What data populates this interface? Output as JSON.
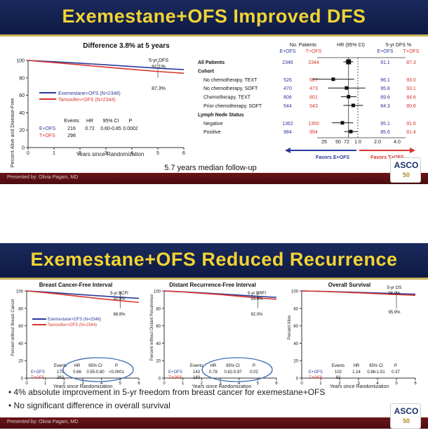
{
  "slide1": {
    "title": "Exemestane+OFS Improved DFS",
    "presenter": "Presented by: Olivia Pagani, MD",
    "logo": {
      "name": "ASCO",
      "anniv": "50"
    },
    "km": {
      "heading": "Difference 3.8% at 5 years",
      "ylabel": "Percent Alive and Disease-Free",
      "xlabel": "Years since Randomization",
      "annotation_label": "5-yr DFS",
      "annotation_top": "91.1%",
      "annotation_bottom": "87.3%",
      "legend": [
        "Exemestane+OFS (N=2346)",
        "Tamoxifen+OFS (N=2344)"
      ],
      "table_header": [
        "Events",
        "HR",
        "95% CI",
        "P"
      ],
      "row_e": {
        "label": "E+OFS",
        "events": "216",
        "hr": "0.72",
        "ci": "0.60-0.85",
        "p": "0.0002"
      },
      "row_t": {
        "label": "T+OFS",
        "events": "298"
      },
      "footer": "5.7 years median follow-up"
    },
    "forest": {
      "col_patients": "No. Patients",
      "col_hr": "HR (95% CI)",
      "col_dfs": "5-yr DFS %",
      "arm_e": "E+OFS",
      "arm_t": "T+OFS",
      "x_ticks": [
        "25",
        "50",
        "72",
        "1.0",
        "2.0",
        "4.0"
      ],
      "favors_e": "Favors E+OFS",
      "favors_t": "Favors T+OFS"
    }
  },
  "slide2": {
    "title": "Exemestane+OFS Reduced Recurrence",
    "presenter": "Presented by: Olivia Pagani, MD",
    "logo": {
      "name": "ASCO",
      "anniv": "50"
    },
    "xlabel": "Years since Randomization",
    "legend": [
      "Exemestane+OFS (N=2346)",
      "Tamoxifen+OFS (N=2344)"
    ],
    "table_header": [
      "Events",
      "HR",
      "95% CI",
      "P"
    ],
    "bullets": [
      "• 4% absolute improvement in 5-yr freedom from breast cancer for exemestane+OFS",
      "• No significant difference in overall survival"
    ]
  },
  "chart_data": [
    {
      "type": "line",
      "title": "Difference 3.8% at 5 years",
      "xlabel": "Years since Randomization",
      "ylabel": "Percent Alive and Disease-Free",
      "xlim": [
        0,
        6
      ],
      "ylim": [
        0,
        100
      ],
      "x_ticks": [
        0,
        1,
        2,
        3,
        4,
        5,
        6
      ],
      "y_ticks": [
        0,
        20,
        40,
        60,
        80,
        100
      ],
      "x": [
        0,
        1,
        2,
        3,
        4,
        5,
        6
      ],
      "series": [
        {
          "name": "Exemestane+OFS (N=2346)",
          "color": "#2b3a9b",
          "values": [
            100,
            98.5,
            96.8,
            95,
            93,
            91.1,
            89.5
          ]
        },
        {
          "name": "Tamoxifen+OFS (N=2344)",
          "color": "#d8342c",
          "values": [
            100,
            97.5,
            95,
            92.3,
            89.8,
            87.3,
            85.3
          ]
        }
      ]
    },
    {
      "type": "forest",
      "rows": [
        {
          "label": "All Patients",
          "bold": true,
          "n_e": "2346",
          "n_t": "2344",
          "hr": 0.72,
          "lo": 0.6,
          "hi": 0.85,
          "dfs_e": "91.1",
          "dfs_t": "87.3"
        },
        {
          "label": "Cohort",
          "bold": true,
          "header": true
        },
        {
          "label": "No chemotherapy, TEXT",
          "n_e": "526",
          "n_t": "527",
          "hr": 0.42,
          "lo": 0.2,
          "hi": 0.88,
          "dfs_e": "96.1",
          "dfs_t": "93.0"
        },
        {
          "label": "No chemotherapy, SOFT",
          "n_e": "470",
          "n_t": "473",
          "hr": 0.67,
          "lo": 0.35,
          "hi": 1.3,
          "dfs_e": "95.8",
          "dfs_t": "93.1"
        },
        {
          "label": "Chemotherapy, TEXT",
          "n_e": "806",
          "n_t": "801",
          "hr": 0.72,
          "lo": 0.55,
          "hi": 0.95,
          "dfs_e": "89.6",
          "dfs_t": "84.6"
        },
        {
          "label": "Prior chemotherapy, SOFT",
          "n_e": "544",
          "n_t": "543",
          "hr": 0.85,
          "lo": 0.6,
          "hi": 1.2,
          "dfs_e": "84.3",
          "dfs_t": "80.6"
        },
        {
          "label": "Lymph Node Status",
          "bold": true,
          "header": true
        },
        {
          "label": "Negative",
          "n_e": "1362",
          "n_t": "1350",
          "hr": 0.58,
          "lo": 0.4,
          "hi": 0.85,
          "dfs_e": "95.1",
          "dfs_t": "91.6"
        },
        {
          "label": "Positive",
          "n_e": "984",
          "n_t": "994",
          "hr": 0.78,
          "lo": 0.62,
          "hi": 0.98,
          "dfs_e": "85.6",
          "dfs_t": "81.4"
        }
      ]
    },
    {
      "type": "line",
      "title": "Breast Cancer-Free Interval",
      "ylabel": "Percent without Breast Cancer",
      "xlabel": "Years since Randomization",
      "xlim": [
        0,
        6
      ],
      "ylim": [
        0,
        100
      ],
      "annotation_label": "5-yr BCFI",
      "annotation_top": "92.8%",
      "annotation_bottom": "88.8%",
      "table": {
        "e_events": "175",
        "hr": "0.66",
        "ci": "0.55-0.80",
        "p": "<0.0001",
        "t_events": "262"
      },
      "x": [
        0,
        1,
        2,
        3,
        4,
        5,
        6
      ],
      "series": [
        {
          "name": "Exemestane+OFS (N=2346)",
          "color": "#2b3a9b",
          "values": [
            100,
            98.8,
            97.2,
            95.6,
            94.2,
            92.8,
            91.5
          ]
        },
        {
          "name": "Tamoxifen+OFS (N=2344)",
          "color": "#d8342c",
          "values": [
            100,
            98,
            95.7,
            93.3,
            91,
            88.8,
            86.8
          ]
        }
      ]
    },
    {
      "type": "line",
      "title": "Distant Recurrence-Free Interval",
      "ylabel": "Percent without Distant Recurrence",
      "xlabel": "Years since Randomization",
      "xlim": [
        0,
        6
      ],
      "ylim": [
        0,
        100
      ],
      "annotation_label": "5-yr DRFI",
      "annotation_top": "93.8%",
      "annotation_bottom": "92.0%",
      "table": {
        "e_events": "143",
        "hr": "0.78",
        "ci": "0.62-0.97",
        "p": "0.02",
        "t_events": "183"
      },
      "x": [
        0,
        1,
        2,
        3,
        4,
        5,
        6
      ],
      "series": [
        {
          "name": "Exemestane+OFS",
          "color": "#2b3a9b",
          "values": [
            100,
            99,
            97.8,
            96.5,
            95.2,
            93.8,
            92.6
          ]
        },
        {
          "name": "Tamoxifen+OFS",
          "color": "#d8342c",
          "values": [
            100,
            98.8,
            97.3,
            95.8,
            93.9,
            92.0,
            90.5
          ]
        }
      ]
    },
    {
      "type": "line",
      "title": "Overall Survival",
      "ylabel": "Percent Alive",
      "xlabel": "Years since Randomization",
      "xlim": [
        0,
        6
      ],
      "ylim": [
        0,
        100
      ],
      "annotation_label": "5-yr OS",
      "annotation_top": "96.9%",
      "annotation_bottom": "95.9%",
      "table": {
        "e_events": "102",
        "hr": "1.14",
        "ci": "0.86-1.51",
        "p": "0.37",
        "t_events": "92"
      },
      "x": [
        0,
        1,
        2,
        3,
        4,
        5,
        6
      ],
      "series": [
        {
          "name": "Exemestane+OFS",
          "color": "#2b3a9b",
          "values": [
            100,
            99.6,
            99,
            98.3,
            97.6,
            96.9,
            96.2
          ]
        },
        {
          "name": "Tamoxifen+OFS",
          "color": "#d8342c",
          "values": [
            100,
            99.5,
            98.7,
            97.8,
            96.8,
            95.9,
            95.0
          ]
        }
      ]
    }
  ]
}
